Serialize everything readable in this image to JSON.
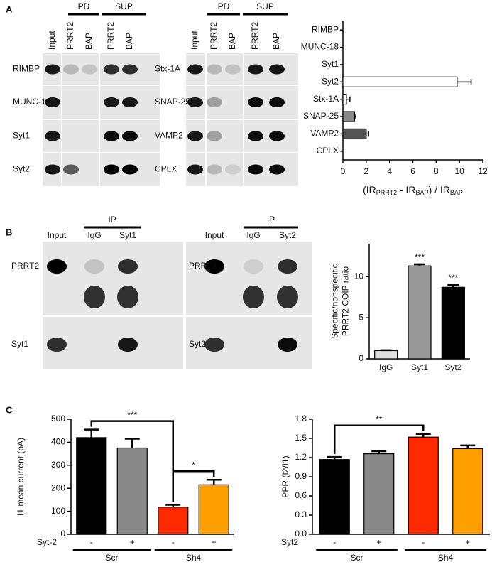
{
  "panels": [
    "A",
    "B",
    "C"
  ],
  "blots": [
    {
      "groups": [
        "PD",
        "SUP"
      ],
      "columns": [
        "Input",
        "PRRT2",
        "BAP",
        "PRRT2",
        "BAP"
      ],
      "rows": [
        "RIMBP",
        "MUNC-18",
        "Syt1",
        "Syt2"
      ]
    },
    {
      "groups": [
        "PD",
        "SUP"
      ],
      "columns": [
        "Input",
        "PRRT2",
        "BAP",
        "PRRT2",
        "BAP"
      ],
      "rows": [
        "Stx-1A",
        "SNAP-25",
        "VAMP2",
        "CPLX"
      ]
    },
    {
      "groups": [
        "IP"
      ],
      "columns": [
        "Input",
        "IgG",
        "Syt1"
      ],
      "rows": [
        "PRRT2",
        "Syt1"
      ]
    },
    {
      "groups": [
        "IP"
      ],
      "columns": [
        "Input",
        "IgG",
        "Syt2"
      ],
      "rows": [
        "PRRT2",
        "Syt2"
      ]
    }
  ],
  "chart_data": [
    {
      "type": "hbar",
      "categories": [
        "RIMBP",
        "MUNC-18",
        "Syt1",
        "Syt2",
        "Stx-1A",
        "SNAP-25",
        "VAMP2",
        "CPLX"
      ],
      "values": [
        0,
        0,
        0,
        9.8,
        0.3,
        1.0,
        2.0,
        0
      ],
      "errors": [
        null,
        null,
        null,
        1.2,
        0.3,
        0.1,
        0.2,
        null
      ],
      "colors": [
        "#ffffff",
        "#ffffff",
        "#ffffff",
        "#ffffff",
        "#ffffff",
        "#888888",
        "#555555",
        "#ffffff"
      ],
      "xlim": [
        0,
        12
      ],
      "xticks": [
        0,
        2,
        4,
        6,
        8,
        10,
        12
      ],
      "xlabel": [
        "(IR",
        "PRRT2",
        " - IR",
        "BAP",
        ") / IR",
        "BAP"
      ]
    },
    {
      "type": "bar",
      "categories": [
        "IgG",
        "Syt1",
        "Syt2"
      ],
      "values": [
        1.0,
        11.3,
        8.7
      ],
      "errors": [
        0.05,
        0.2,
        0.3
      ],
      "colors": [
        "#dddddd",
        "#999999",
        "#000000"
      ],
      "significance": [
        null,
        "***",
        "***"
      ],
      "ylim": [
        0,
        14
      ],
      "yticks": [
        0,
        5,
        10
      ],
      "ylabel": [
        "Specific/nonspecific",
        "PRRT2 COIP ratio"
      ]
    },
    {
      "type": "bar",
      "categories": [
        "-",
        "+",
        "-",
        "+"
      ],
      "groups": [
        "Scr",
        "Sh4"
      ],
      "row_label": "Syt-2",
      "values": [
        420,
        375,
        118,
        215
      ],
      "errors": [
        35,
        40,
        10,
        22
      ],
      "colors": [
        "#000000",
        "#888888",
        "#ff2a00",
        "#ffa000"
      ],
      "comparisons": [
        {
          "between": [
            0,
            2
          ],
          "label": "***"
        },
        {
          "between": [
            2,
            3
          ],
          "label": "*"
        }
      ],
      "ylim": [
        0,
        500
      ],
      "yticks": [
        0,
        100,
        200,
        300,
        400,
        500
      ],
      "ylabel": [
        "I1 mean current (pA)"
      ]
    },
    {
      "type": "bar",
      "categories": [
        "-",
        "+",
        "-",
        "+"
      ],
      "groups": [
        "Scr",
        "Sh4"
      ],
      "row_label": "Syt2",
      "values": [
        1.17,
        1.26,
        1.52,
        1.34
      ],
      "errors": [
        0.04,
        0.04,
        0.05,
        0.05
      ],
      "colors": [
        "#000000",
        "#888888",
        "#ff2a00",
        "#ffa000"
      ],
      "comparisons": [
        {
          "between": [
            0,
            2
          ],
          "label": "**"
        }
      ],
      "ylim": [
        0,
        1.8
      ],
      "yticks": [
        {
          "value": 0,
          "label": "0.0"
        },
        0.3,
        0.6,
        0.9,
        1.2,
        1.5,
        1.8
      ],
      "ylabel": [
        "PPR (I2/I1)"
      ]
    }
  ]
}
